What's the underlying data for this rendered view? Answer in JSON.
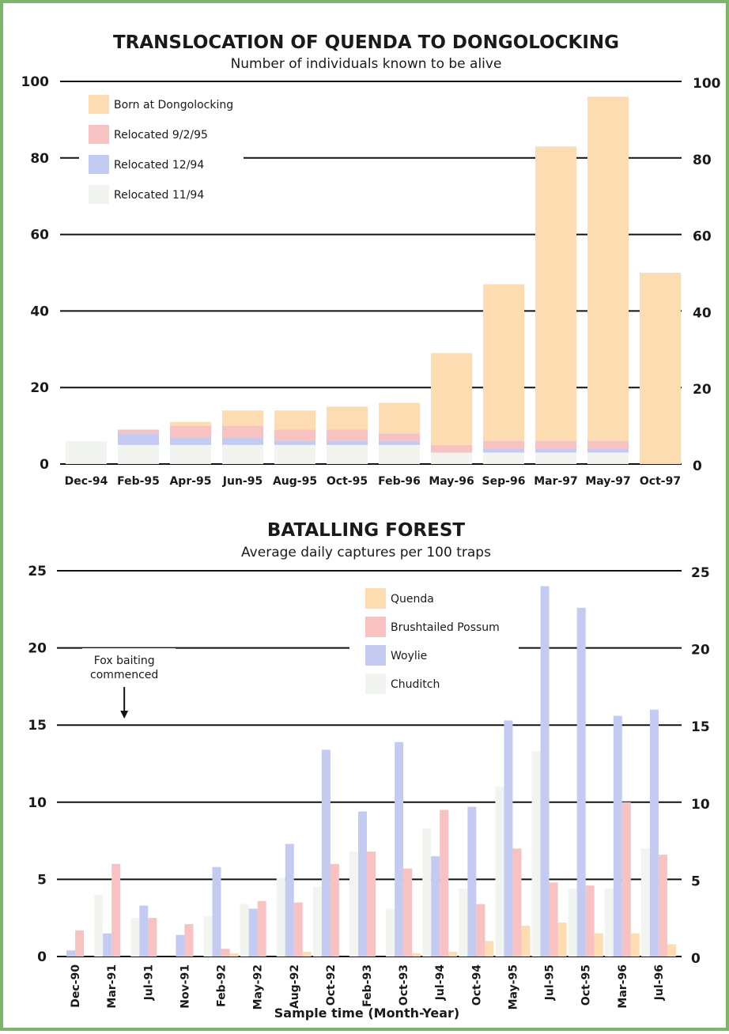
{
  "colors": {
    "frame": "#7cb66a",
    "born_quenda": "#fcdcb0",
    "relocated_9_2_95": "#f9c2c2",
    "relocated_12_94": "#c4cbf3",
    "relocated_11_94": "#f1f4ef",
    "grid": "#111111"
  },
  "chart_data": [
    {
      "type": "bar",
      "stacked": true,
      "title": "TRANSLOCATION OF QUENDA TO DONGOLOCKING",
      "subtitle": "Number of individuals known to be alive",
      "xlabel": "",
      "ylabel": "",
      "ylim": [
        0,
        100
      ],
      "yticks": [
        0,
        20,
        40,
        60,
        80,
        100
      ],
      "grid": true,
      "legend_position": "top-left",
      "categories": [
        "Dec-94",
        "Feb-95",
        "Apr-95",
        "Jun-95",
        "Aug-95",
        "Oct-95",
        "Feb-96",
        "May-96",
        "Sep-96",
        "Mar-97",
        "May-97",
        "Oct-97"
      ],
      "series": [
        {
          "name": "Relocated 11/94",
          "color": "#f1f4ef",
          "values": [
            6,
            5,
            5,
            5,
            5,
            5,
            5,
            3,
            3,
            3,
            3,
            0
          ]
        },
        {
          "name": "Relocated 12/94",
          "color": "#c4cbf3",
          "values": [
            0,
            3,
            2,
            2,
            1,
            1,
            1,
            0,
            1,
            1,
            1,
            0
          ]
        },
        {
          "name": "Relocated 9/2/95",
          "color": "#f9c2c2",
          "values": [
            0,
            1,
            3,
            3,
            3,
            3,
            2,
            2,
            2,
            2,
            2,
            0
          ]
        },
        {
          "name": "Born at Dongolocking",
          "color": "#fcdcb0",
          "values": [
            0,
            0,
            1,
            4,
            5,
            6,
            8,
            24,
            41,
            77,
            90,
            50
          ]
        }
      ]
    },
    {
      "type": "bar",
      "grouped": true,
      "title": "BATALLING FOREST",
      "subtitle": "Average daily captures per 100 traps",
      "xlabel": "Sample time (Month-Year)",
      "ylabel": "",
      "ylim": [
        0,
        25
      ],
      "yticks": [
        0,
        5,
        10,
        15,
        20,
        25
      ],
      "grid": true,
      "legend_position": "top-right",
      "annotation": {
        "text_lines": [
          "Fox baiting",
          "commenced"
        ],
        "category": "Mar-91"
      },
      "categories": [
        "Dec-90",
        "Mar-91",
        "Jul-91",
        "Nov-91",
        "Feb-92",
        "May-92",
        "Aug-92",
        "Oct-92",
        "Feb-93",
        "Oct-93",
        "Jul-94",
        "Oct-94",
        "May-95",
        "Jul-95",
        "Oct-95",
        "Mar-96",
        "Jul-96"
      ],
      "series": [
        {
          "name": "Chuditch",
          "color": "#f1f4ef",
          "values": [
            0,
            4,
            2.5,
            0,
            2.6,
            3.4,
            5.1,
            4.5,
            6.8,
            3.1,
            8.3,
            4.4,
            11,
            13.3,
            4.4,
            4.4,
            7
          ]
        },
        {
          "name": "Woylie",
          "color": "#c4cbf3",
          "values": [
            0.4,
            1.5,
            3.3,
            1.4,
            5.8,
            3.1,
            7.3,
            13.4,
            9.4,
            13.9,
            6.5,
            9.7,
            15.3,
            24,
            22.6,
            15.6,
            16
          ]
        },
        {
          "name": "Brushtailed Possum",
          "color": "#f9c2c2",
          "values": [
            1.7,
            6,
            2.5,
            2.1,
            0.5,
            3.6,
            3.5,
            6,
            6.8,
            5.7,
            9.5,
            3.4,
            7,
            4.8,
            4.6,
            10,
            6.6
          ]
        },
        {
          "name": "Quenda",
          "color": "#fcdcb0",
          "values": [
            0,
            0,
            0,
            0,
            0.2,
            0,
            0.3,
            0,
            0,
            0.2,
            0.3,
            1,
            2,
            2.2,
            1.5,
            1.5,
            0.8
          ]
        }
      ]
    }
  ]
}
